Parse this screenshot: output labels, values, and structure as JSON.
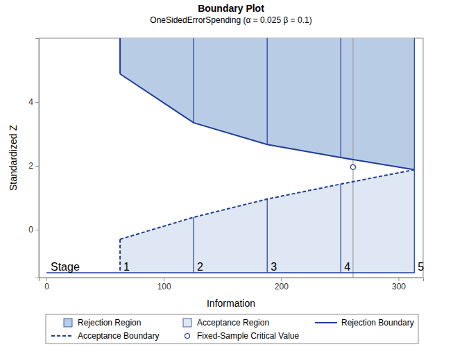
{
  "chart_data": {
    "type": "boundary",
    "title": "Boundary Plot",
    "subtitle": "OneSidedErrorSpending (α = 0.025  β = 0.1)",
    "x_label": "Information",
    "y_label": "Standardized Z",
    "xlim": [
      -6.5,
      321
    ],
    "xticks": [
      0,
      100,
      200,
      300
    ],
    "ylim": [
      -1.5,
      6
    ],
    "yticks": [
      0,
      2,
      4
    ],
    "grid": false,
    "legend": "bottom",
    "stage_label": "Stage",
    "stages": [
      1,
      2,
      3,
      4,
      5
    ],
    "x": [
      62.7,
      125.4,
      188.1,
      250.8,
      313.5
    ],
    "series": [
      {
        "name": "Rejection Boundary",
        "color": "#1f3d99",
        "line_style": "solid",
        "values": [
          4.88,
          3.35,
          2.67,
          2.26,
          1.88
        ]
      },
      {
        "name": "Acceptance Boundary",
        "color": "#1f3d99",
        "line_style": "dashed",
        "values": [
          -0.3,
          0.39,
          0.96,
          1.43,
          1.88
        ]
      }
    ],
    "regions": [
      {
        "name": "Rejection Region",
        "color": "#b9cce5"
      },
      {
        "name": "Acceptance Region",
        "color": "#dee7f3"
      }
    ],
    "points": [
      {
        "name": "Fixed-Sample Critical Value",
        "x": 261.25,
        "y": 1.96,
        "marker": "circle",
        "color": "#1f3d99"
      }
    ]
  }
}
